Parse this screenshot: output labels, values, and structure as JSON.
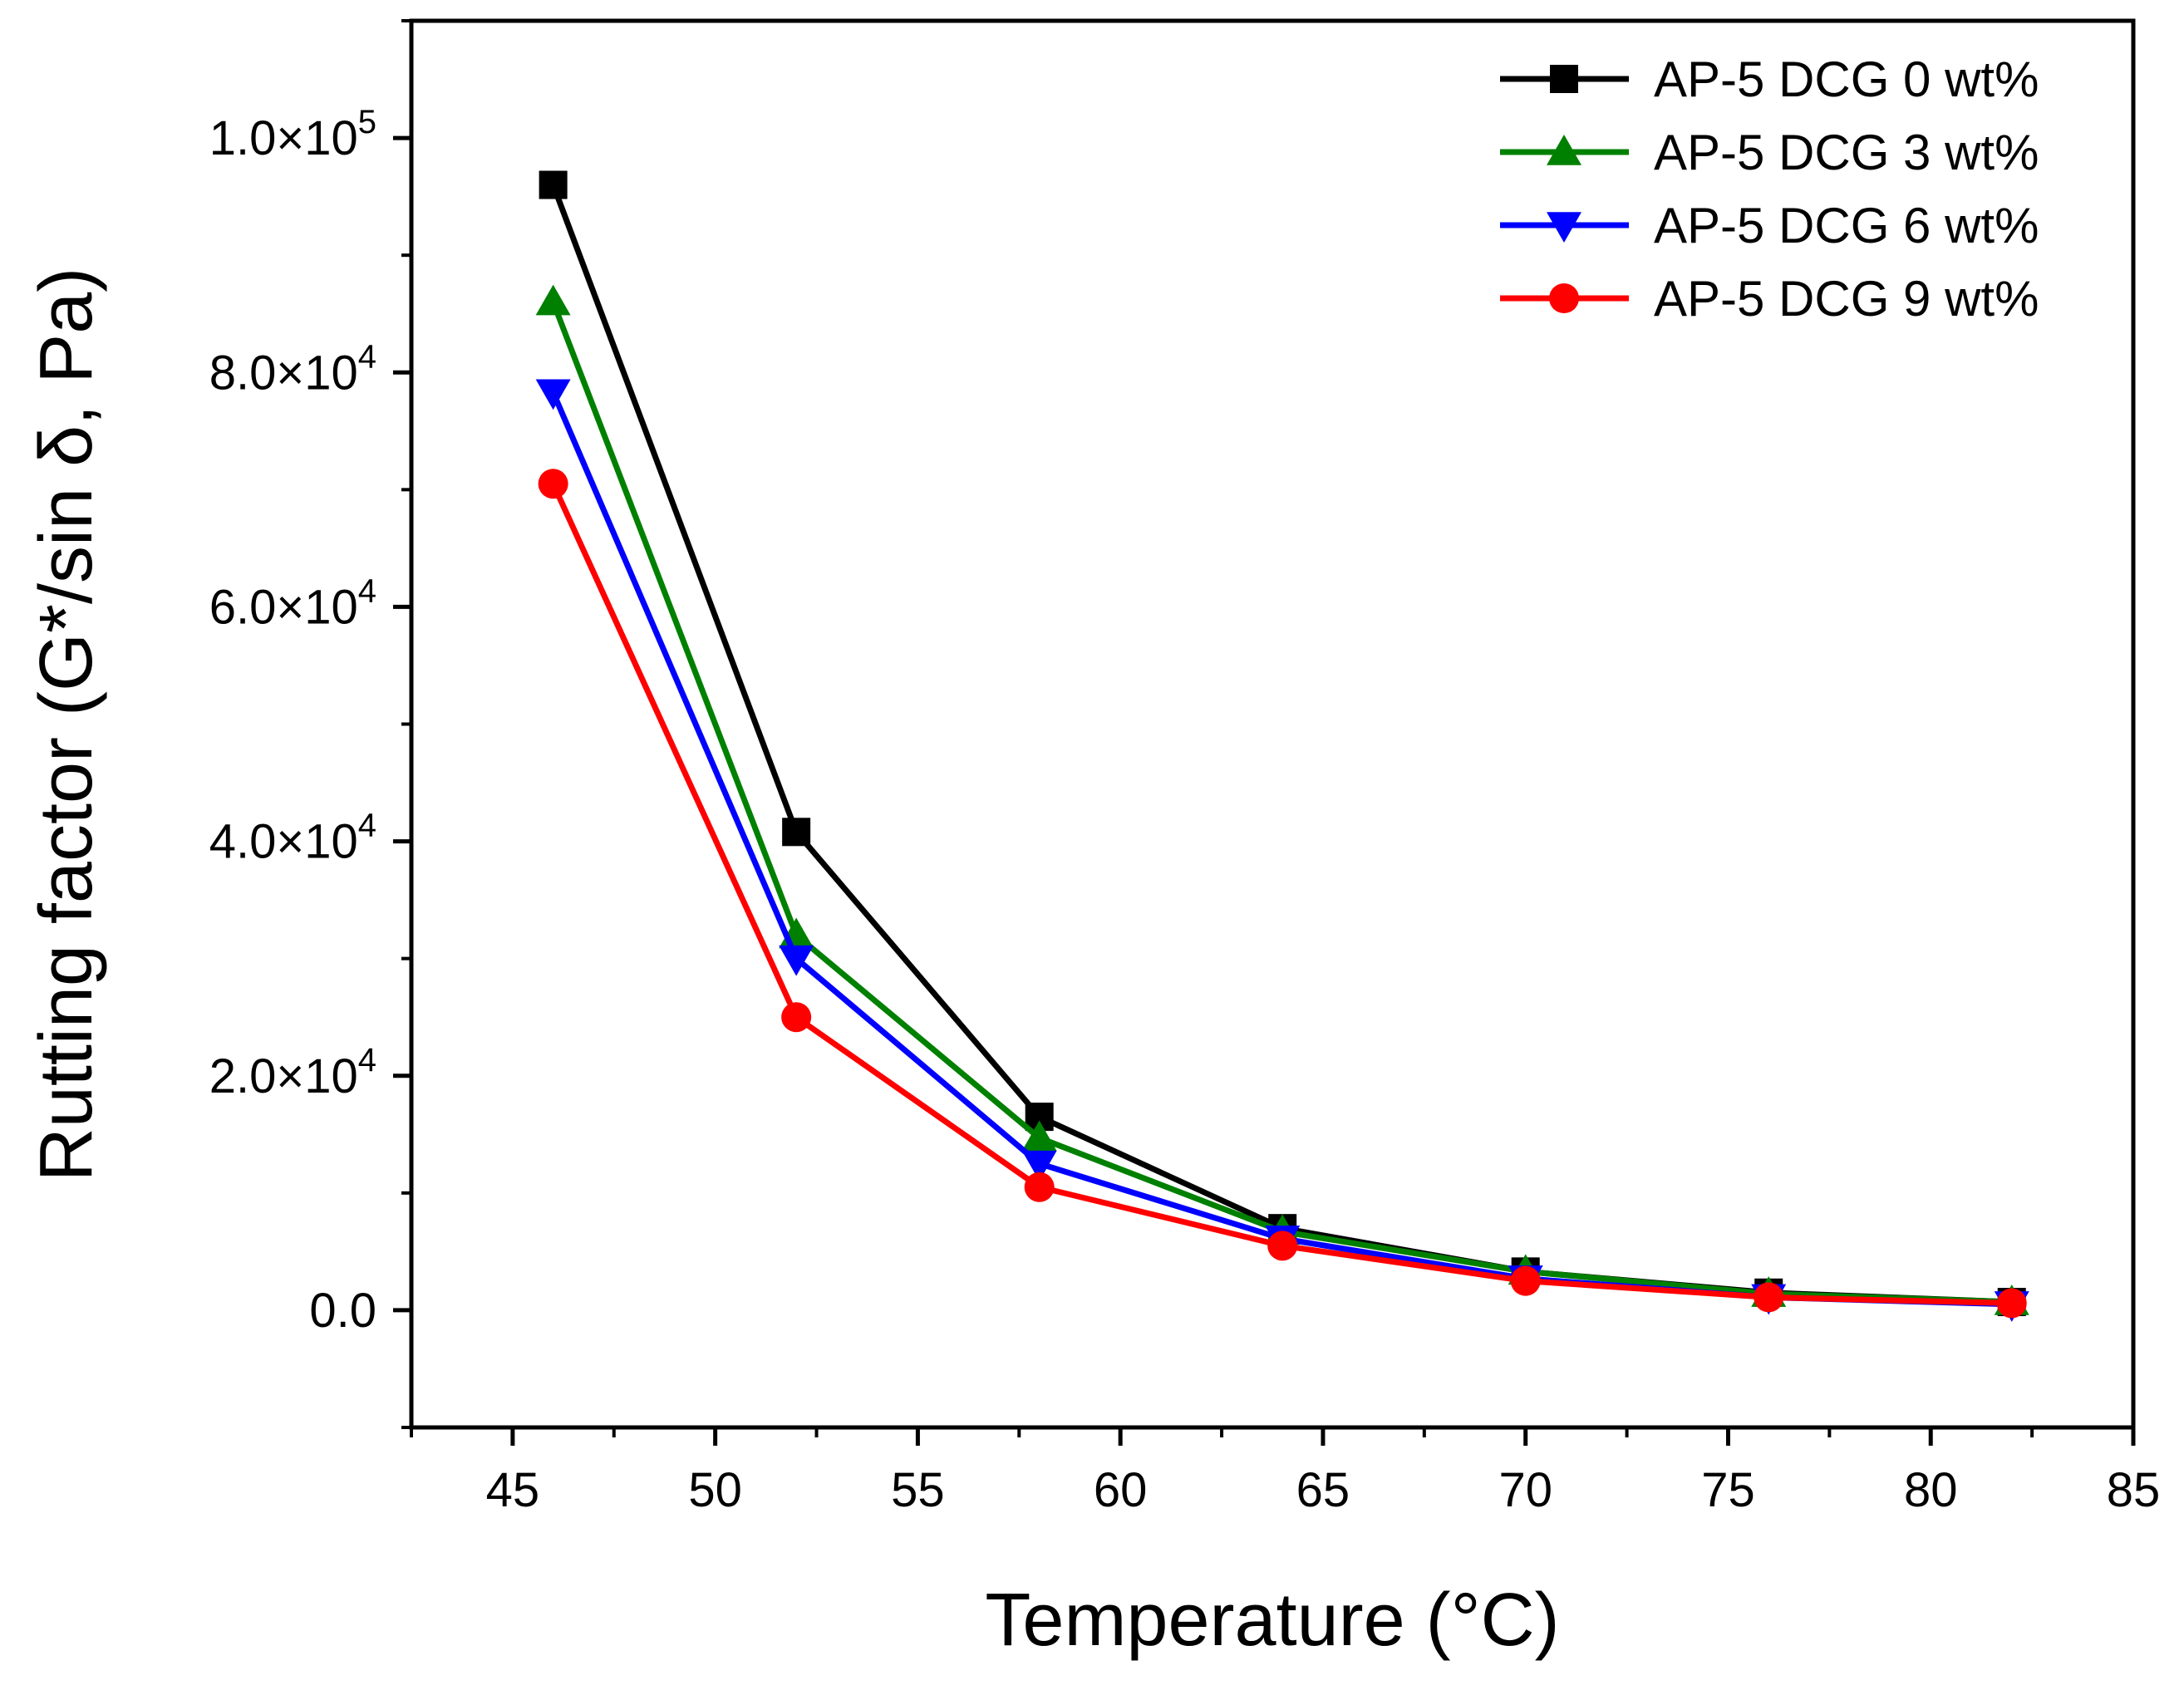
{
  "chart_data": {
    "type": "line",
    "title": "",
    "xlabel": "Temperature (°C)",
    "ylabel": "Rutting factor (G*/sin δ, Pa)",
    "xlim": [
      42.5,
      85
    ],
    "ylim": [
      -10000,
      110000
    ],
    "xticks": [
      45,
      50,
      55,
      60,
      65,
      70,
      75,
      80,
      85
    ],
    "xtick_labels": [
      "45",
      "50",
      "55",
      "60",
      "65",
      "70",
      "75",
      "80",
      "85"
    ],
    "yticks": [
      0,
      20000,
      40000,
      60000,
      80000,
      100000
    ],
    "ytick_labels": [
      {
        "mantissa": "0.0",
        "exp": ""
      },
      {
        "mantissa": "2.0×10",
        "exp": "4"
      },
      {
        "mantissa": "4.0×10",
        "exp": "4"
      },
      {
        "mantissa": "6.0×10",
        "exp": "4"
      },
      {
        "mantissa": "8.0×10",
        "exp": "4"
      },
      {
        "mantissa": "1.0×10",
        "exp": "5"
      }
    ],
    "x": [
      46,
      52,
      58,
      64,
      70,
      76,
      82
    ],
    "legend_position": "top-right",
    "series": [
      {
        "name": "AP-5 DCG 0 wt%",
        "color": "#000000",
        "marker": "square",
        "values": [
          96000,
          40800,
          16500,
          7000,
          3300,
          1500,
          700
        ]
      },
      {
        "name": "AP-5 DCG 3 wt%",
        "color": "#008000",
        "marker": "triangle-up",
        "values": [
          86000,
          32000,
          14700,
          6700,
          3300,
          1400,
          700
        ]
      },
      {
        "name": "AP-5 DCG 6 wt%",
        "color": "#0000ff",
        "marker": "triangle-down",
        "values": [
          78300,
          30000,
          12500,
          6100,
          2700,
          1100,
          500
        ]
      },
      {
        "name": "AP-5 DCG 9 wt%",
        "color": "#ff0000",
        "marker": "circle",
        "values": [
          70500,
          25000,
          10500,
          5500,
          2500,
          1100,
          600
        ]
      }
    ]
  }
}
